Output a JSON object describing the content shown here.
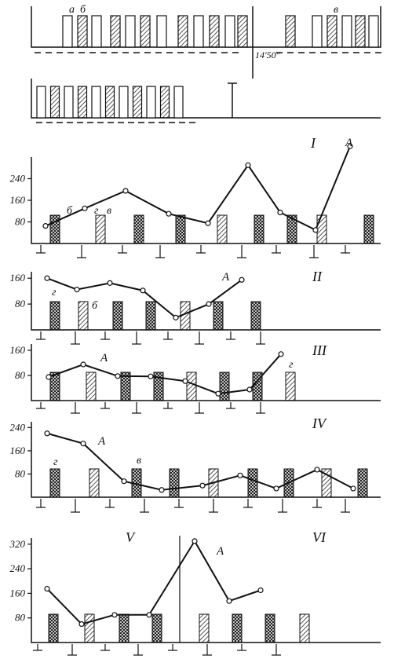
{
  "colors": {
    "ink": "#111111",
    "background": "#ffffff"
  },
  "top_strip": {
    "labels": [
      "а",
      "б",
      "в"
    ],
    "time_marker": "14'50''"
  },
  "letters": {
    "a": "а",
    "b": "б",
    "v": "в",
    "g": "г",
    "A": "А"
  },
  "chart_data": [
    {
      "type": "line",
      "panel": "I",
      "yticks": [
        80,
        160,
        240
      ],
      "ylim": [
        0,
        320
      ],
      "series": [
        {
          "name": "А",
          "values": [
            65,
            130,
            195,
            110,
            75,
            290,
            115,
            50,
            360
          ]
        }
      ],
      "markers": [
        "б",
        "г",
        "в"
      ]
    },
    {
      "type": "line",
      "panel": "II",
      "yticks": [
        80,
        160
      ],
      "ylim": [
        0,
        180
      ],
      "series": [
        {
          "name": "А",
          "values": [
            160,
            125,
            145,
            122,
            38,
            80,
            155
          ]
        }
      ],
      "markers": [
        "г",
        "б"
      ]
    },
    {
      "type": "line",
      "panel": "III",
      "yticks": [
        80,
        160
      ],
      "ylim": [
        0,
        180
      ],
      "series": [
        {
          "name": "А",
          "values": [
            75,
            115,
            78,
            77,
            62,
            22,
            35,
            148
          ]
        }
      ],
      "markers": [
        "г"
      ]
    },
    {
      "type": "line",
      "panel": "IV",
      "yticks": [
        80,
        160,
        240
      ],
      "ylim": [
        0,
        260
      ],
      "series": [
        {
          "name": "А",
          "values": [
            220,
            185,
            55,
            25,
            40,
            75,
            30,
            95,
            30
          ]
        }
      ],
      "markers": [
        "г",
        "в"
      ]
    },
    {
      "type": "line",
      "panel": "V",
      "yticks": [
        80,
        160,
        240,
        320
      ],
      "ylim": [
        0,
        340
      ],
      "series": [
        {
          "name": "А",
          "values": [
            175,
            60,
            90,
            90,
            330,
            135,
            170
          ]
        }
      ],
      "markers": []
    },
    {
      "type": "line",
      "panel": "VI",
      "yticks": [],
      "series": [],
      "markers": []
    }
  ]
}
